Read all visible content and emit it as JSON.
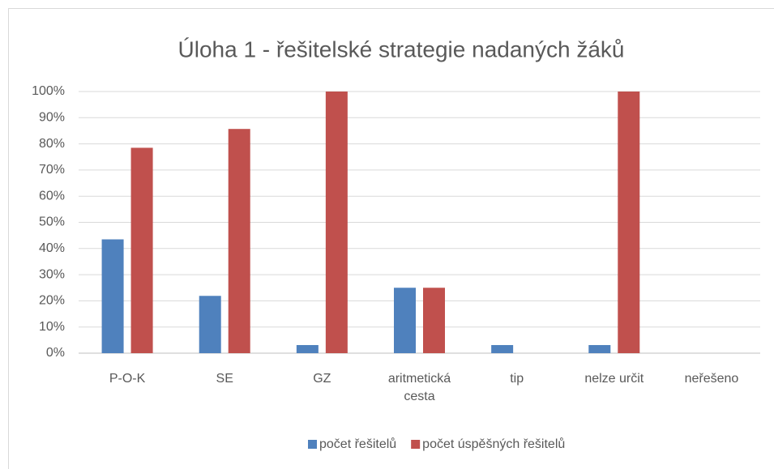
{
  "chart_data": {
    "type": "bar",
    "title": "Úloha 1 - řešitelské strategie nadaných žáků",
    "categories": [
      "P-O-K",
      "SE",
      "GZ",
      "aritmetická cesta",
      "tip",
      "nelze určit",
      "neřešeno"
    ],
    "series": [
      {
        "name": "počet řešitelů",
        "color": "#4f81bd",
        "values": [
          43.5,
          21.9,
          3.1,
          25,
          3.1,
          3.1,
          0
        ]
      },
      {
        "name": "počet úspěšných řešitelů",
        "color": "#c0504d",
        "values": [
          78.5,
          85.7,
          100,
          25,
          0,
          100,
          0
        ]
      }
    ],
    "ylim": [
      0,
      100
    ],
    "yticks": [
      {
        "value": 0,
        "label": "0%"
      },
      {
        "value": 10,
        "label": "10%"
      },
      {
        "value": 20,
        "label": "20%"
      },
      {
        "value": 30,
        "label": "30%"
      },
      {
        "value": 40,
        "label": "40%"
      },
      {
        "value": 50,
        "label": "50%"
      },
      {
        "value": 60,
        "label": "60%"
      },
      {
        "value": 70,
        "label": "70%"
      },
      {
        "value": 80,
        "label": "80%"
      },
      {
        "value": 90,
        "label": "90%"
      },
      {
        "value": 100,
        "label": "100%"
      }
    ],
    "grid": true,
    "legend": "bottom"
  }
}
